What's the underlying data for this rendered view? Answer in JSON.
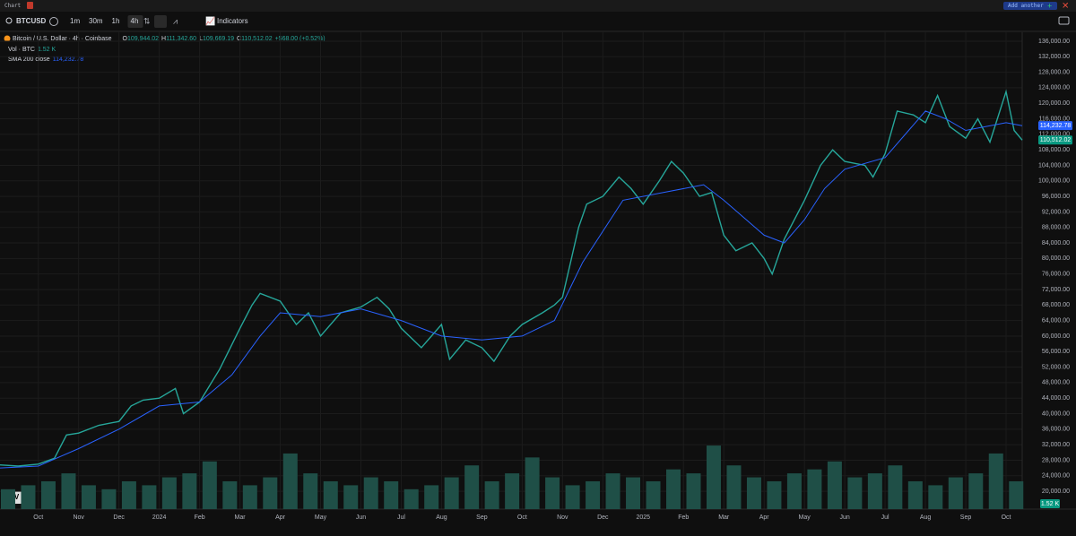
{
  "window": {
    "title": "Chart",
    "add_button": "Add another"
  },
  "toolbar": {
    "symbol": "BTCUSD",
    "intervals": [
      "1m",
      "30m",
      "1h",
      "4h"
    ],
    "active_interval": 3,
    "indicators": "Indicators"
  },
  "legend": {
    "open_label": "O",
    "open": "109,944.02",
    "high_label": "H",
    "high": "111,342.60",
    "low_label": "L",
    "low": "109,669.19",
    "close_label": "C",
    "close": "110,512.02",
    "change": "+568.00 (+0.52%)",
    "volume": "1.52 K",
    "sma": "114,232.78"
  },
  "chart_data": {
    "type": "line",
    "xlim": [
      -0.95,
      24.4
    ],
    "xticks": [
      {
        "value": 0,
        "label": "Oct"
      },
      {
        "value": 1,
        "label": "Nov"
      },
      {
        "value": 2,
        "label": "Dec"
      },
      {
        "value": 3,
        "label": "2024"
      },
      {
        "value": 4,
        "label": "Feb"
      },
      {
        "value": 5,
        "label": "Mar"
      },
      {
        "value": 6,
        "label": "Apr"
      },
      {
        "value": 7,
        "label": "May"
      },
      {
        "value": 8,
        "label": "Jun"
      },
      {
        "value": 9,
        "label": "Jul"
      },
      {
        "value": 10,
        "label": "Aug"
      },
      {
        "value": 11,
        "label": "Sep"
      },
      {
        "value": 12,
        "label": "Oct"
      },
      {
        "value": 13,
        "label": "Nov"
      },
      {
        "value": 14,
        "label": "Dec"
      },
      {
        "value": 15,
        "label": "2025"
      },
      {
        "value": 16,
        "label": "Feb"
      },
      {
        "value": 17,
        "label": "Mar"
      },
      {
        "value": 18,
        "label": "Apr"
      },
      {
        "value": 19,
        "label": "May"
      },
      {
        "value": 20,
        "label": "Jun"
      },
      {
        "value": 21,
        "label": "Jul"
      },
      {
        "value": 22,
        "label": "Aug"
      },
      {
        "value": 23,
        "label": "Sep"
      },
      {
        "value": 24,
        "label": "Oct"
      }
    ],
    "ylim": [
      15400,
      138300
    ],
    "yticks": [
      {
        "value": 20000,
        "label": "20,000.00"
      },
      {
        "value": 24000,
        "label": "24,000.00"
      },
      {
        "value": 28000,
        "label": "28,000.00"
      },
      {
        "value": 32000,
        "label": "32,000.00"
      },
      {
        "value": 36000,
        "label": "36,000.00"
      },
      {
        "value": 40000,
        "label": "40,000.00"
      },
      {
        "value": 44000,
        "label": "44,000.00"
      },
      {
        "value": 48000,
        "label": "48,000.00"
      },
      {
        "value": 52000,
        "label": "52,000.00"
      },
      {
        "value": 56000,
        "label": "56,000.00"
      },
      {
        "value": 60000,
        "label": "60,000.00"
      },
      {
        "value": 64000,
        "label": "64,000.00"
      },
      {
        "value": 68000,
        "label": "68,000.00"
      },
      {
        "value": 72000,
        "label": "72,000.00"
      },
      {
        "value": 76000,
        "label": "76,000.00"
      },
      {
        "value": 80000,
        "label": "80,000.00"
      },
      {
        "value": 84000,
        "label": "84,000.00"
      },
      {
        "value": 88000,
        "label": "88,000.00"
      },
      {
        "value": 92000,
        "label": "92,000.00"
      },
      {
        "value": 96000,
        "label": "96,000.00"
      },
      {
        "value": 100000,
        "label": "100,000.00"
      },
      {
        "value": 104000,
        "label": "104,000.00"
      },
      {
        "value": 108000,
        "label": "108,000.00"
      },
      {
        "value": 112000,
        "label": "112,000.00"
      },
      {
        "value": 116000,
        "label": "116,000.00"
      },
      {
        "value": 120000,
        "label": "120,000.00"
      },
      {
        "value": 124000,
        "label": "124,000.00"
      },
      {
        "value": 128000,
        "label": "128,000.00"
      },
      {
        "value": 132000,
        "label": "132,000.00"
      },
      {
        "value": 136000,
        "label": "136,000.00"
      }
    ],
    "y2lim": [
      0,
      30
    ],
    "grid": true,
    "series": [
      {
        "name": "Bitcoin / U.S. Dollar · 4h · Coinbase",
        "color": "#26a69a",
        "x": [
          -0.95,
          -0.5,
          0,
          0.4,
          0.7,
          1,
          1.5,
          2,
          2.3,
          2.6,
          3,
          3.4,
          3.6,
          4,
          4.5,
          5,
          5.3,
          5.5,
          6,
          6.4,
          6.7,
          7,
          7.5,
          8,
          8.4,
          8.7,
          9,
          9.5,
          10,
          10.2,
          10.6,
          11,
          11.3,
          11.7,
          12,
          12.5,
          12.8,
          13,
          13.4,
          13.6,
          14,
          14.4,
          14.7,
          15,
          15.4,
          15.7,
          16,
          16.4,
          16.7,
          17,
          17.3,
          17.7,
          18,
          18.2,
          18.5,
          19,
          19.4,
          19.7,
          20,
          20.5,
          20.7,
          21,
          21.3,
          21.7,
          22,
          22.3,
          22.6,
          23,
          23.3,
          23.6,
          24,
          24.2,
          24.4
        ],
        "values": [
          26800,
          26500,
          27000,
          28500,
          34500,
          35000,
          37000,
          38000,
          42000,
          43500,
          44000,
          46500,
          40000,
          43000,
          51500,
          62000,
          68000,
          71000,
          69000,
          63000,
          66000,
          60000,
          66000,
          67500,
          70000,
          67000,
          62000,
          57000,
          63000,
          54000,
          59000,
          57000,
          53500,
          60000,
          63000,
          66000,
          68000,
          70000,
          88000,
          94000,
          96000,
          101000,
          98000,
          94000,
          100000,
          105000,
          102000,
          96000,
          97000,
          86000,
          82000,
          84000,
          80000,
          76000,
          85000,
          95000,
          104000,
          108000,
          105000,
          104000,
          101000,
          107000,
          118000,
          117000,
          115000,
          122000,
          114000,
          111000,
          116000,
          110000,
          123000,
          113000,
          110512.02
        ]
      },
      {
        "name": "SMA 200 close",
        "color": "#2962ff",
        "x": [
          -0.95,
          0,
          1,
          2,
          3,
          4,
          4.8,
          5.5,
          6,
          7,
          8,
          9,
          10,
          11,
          12,
          12.8,
          13.5,
          14.5,
          15.5,
          16.5,
          17,
          18,
          18.5,
          19,
          19.5,
          20,
          21,
          22,
          22.5,
          23,
          24,
          24.4
        ],
        "values": [
          26000,
          26500,
          31000,
          36000,
          42000,
          43000,
          50000,
          60000,
          66000,
          65000,
          67000,
          64000,
          60000,
          59000,
          60000,
          64000,
          79000,
          95000,
          97000,
          99000,
          95000,
          86000,
          84000,
          90000,
          98000,
          103000,
          106000,
          118000,
          116000,
          113000,
          115000,
          114232.78
        ]
      },
      {
        "name": "Vol · BTC",
        "color": "#1f4f47",
        "axis": "y2",
        "kind": "bar",
        "x": [
          -0.75,
          -0.25,
          0.25,
          0.75,
          1.25,
          1.75,
          2.25,
          2.75,
          3.25,
          3.75,
          4.25,
          4.75,
          5.25,
          5.75,
          6.25,
          6.75,
          7.25,
          7.75,
          8.25,
          8.75,
          9.25,
          9.75,
          10.25,
          10.75,
          11.25,
          11.75,
          12.25,
          12.75,
          13.25,
          13.75,
          14.25,
          14.75,
          15.25,
          15.75,
          16.25,
          16.75,
          17.25,
          17.75,
          18.25,
          18.75,
          19.25,
          19.75,
          20.25,
          20.75,
          21.25,
          21.75,
          22.25,
          22.75,
          23.25,
          23.75,
          24.25
        ],
        "values": [
          5,
          6,
          7,
          9,
          6,
          5,
          7,
          6,
          8,
          9,
          12,
          7,
          6,
          8,
          14,
          9,
          7,
          6,
          8,
          7,
          5,
          6,
          8,
          11,
          7,
          9,
          13,
          8,
          6,
          7,
          9,
          8,
          7,
          10,
          9,
          16,
          11,
          8,
          7,
          9,
          10,
          12,
          8,
          9,
          11,
          7,
          6,
          8,
          9,
          14,
          7
        ]
      }
    ],
    "price_badges": [
      {
        "value": 114232.78,
        "label": "114,232.78",
        "color": "#2962ff"
      },
      {
        "value": 110512.02,
        "label": "110,512.02",
        "color": "#089981"
      }
    ],
    "volume_badge": "1.52 K"
  }
}
